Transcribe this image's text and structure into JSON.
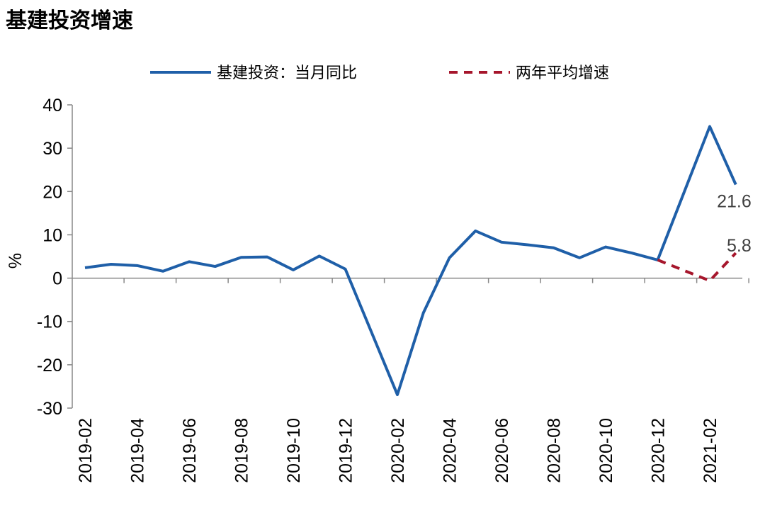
{
  "chart_data": {
    "type": "line",
    "title": "基建投资增速",
    "xlabel": "",
    "ylabel": "%",
    "ylim": [
      -30,
      40
    ],
    "yticks": [
      40,
      30,
      20,
      10,
      0,
      -10,
      -20,
      -30
    ],
    "x": [
      "2019-02",
      "2019-03",
      "2019-04",
      "2019-05",
      "2019-06",
      "2019-07",
      "2019-08",
      "2019-09",
      "2019-10",
      "2019-11",
      "2019-12",
      "2020-01",
      "2020-02",
      "2020-03",
      "2020-04",
      "2020-05",
      "2020-06",
      "2020-07",
      "2020-08",
      "2020-09",
      "2020-10",
      "2020-11",
      "2020-12",
      "2021-01",
      "2021-02",
      "2021-03"
    ],
    "xtick_labels": [
      "2019-02",
      "2019-04",
      "2019-06",
      "2019-08",
      "2019-10",
      "2019-12",
      "2020-02",
      "2020-04",
      "2020-06",
      "2020-08",
      "2020-10",
      "2020-12",
      "2021-02"
    ],
    "legend_position": "top",
    "series": [
      {
        "name": "基建投资：当月同比",
        "color": "#1f5fa8",
        "style": "solid",
        "values": [
          2.4,
          3.2,
          2.9,
          1.6,
          3.8,
          2.7,
          4.8,
          4.9,
          1.9,
          5.1,
          2.1,
          -12.4,
          -26.9,
          -8.0,
          4.7,
          10.9,
          8.3,
          7.7,
          7.0,
          4.7,
          7.2,
          5.8,
          4.2,
          19.6,
          35.0,
          21.6
        ]
      },
      {
        "name": "两年平均增速",
        "color": "#a6162c",
        "style": "dashed",
        "values": [
          null,
          null,
          null,
          null,
          null,
          null,
          null,
          null,
          null,
          null,
          null,
          null,
          null,
          null,
          null,
          null,
          null,
          null,
          null,
          null,
          null,
          null,
          4.2,
          null,
          -0.6,
          5.8
        ]
      }
    ],
    "annotations": [
      {
        "series": 0,
        "index": 25,
        "text": "21.6"
      },
      {
        "series": 1,
        "index": 25,
        "text": "5.8"
      }
    ]
  }
}
